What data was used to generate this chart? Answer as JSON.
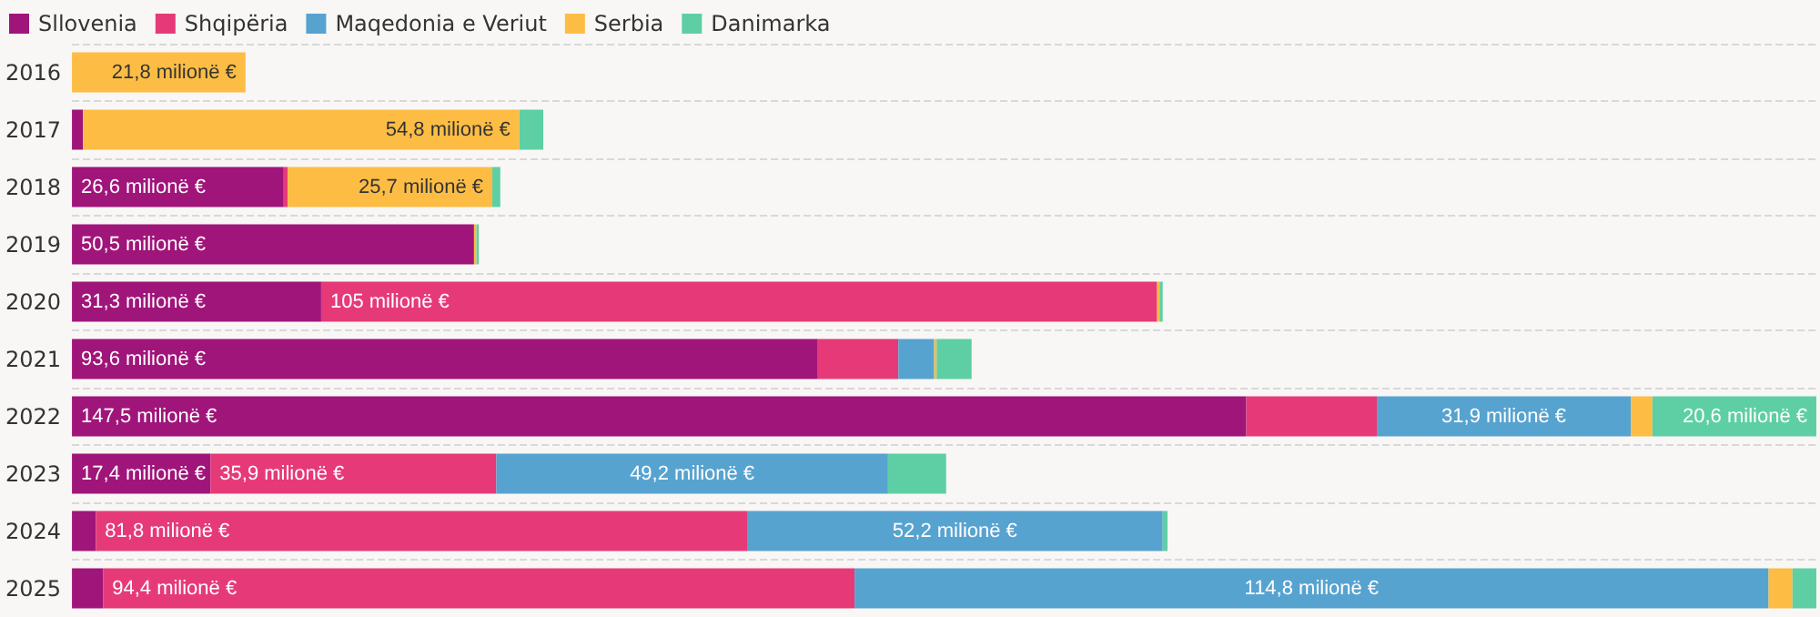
{
  "chart_data": {
    "type": "bar",
    "orientation": "horizontal",
    "stacked": true,
    "grid": "y",
    "legend": "top left",
    "categories": [
      "2016",
      "2017",
      "2018",
      "2019",
      "2020",
      "2021",
      "2022",
      "2023",
      "2024",
      "2025"
    ],
    "series": [
      {
        "name": "Sllovenia",
        "color": "#a0157a",
        "values": [
          null,
          1.4,
          26.6,
          50.5,
          31.3,
          93.6,
          147.5,
          17.4,
          3.0,
          3.9
        ],
        "value_labels": [
          null,
          null,
          "26,6 milionë €",
          "50,5 milionë €",
          "31,3 milionë €",
          "93,6 milionë €",
          "147,5 milionë €",
          "17,4 milionë €",
          null,
          null
        ]
      },
      {
        "name": "Shqipëria",
        "color": "#e63a78",
        "values": [
          null,
          null,
          0.5,
          null,
          105,
          10.2,
          16.4,
          35.9,
          81.8,
          94.4
        ],
        "value_labels": [
          null,
          null,
          null,
          null,
          "105 milionë €",
          null,
          null,
          "35,9 milionë €",
          "81,8 milionë €",
          "94,4 milionë €"
        ]
      },
      {
        "name": "Maqedonia e Veriut",
        "color": "#57a3d0",
        "values": [
          null,
          null,
          null,
          null,
          null,
          4.5,
          31.9,
          49.2,
          52.2,
          114.8
        ],
        "value_labels": [
          null,
          null,
          null,
          null,
          null,
          null,
          "31,9 milionë €",
          "49,2 milionë €",
          "52,2 milionë €",
          "114,8 milionë €"
        ]
      },
      {
        "name": "Serbia",
        "color": "#fdbd44",
        "values": [
          21.8,
          54.8,
          25.7,
          0.3,
          0.3,
          0.3,
          2.7,
          null,
          null,
          3.0
        ],
        "value_labels": [
          "21,8 milionë €",
          "54,8 milionë €",
          "25,7 milionë €",
          null,
          null,
          null,
          null,
          null,
          null,
          null
        ]
      },
      {
        "name": "Danimarka",
        "color": "#5ecfa4",
        "values": [
          null,
          3.0,
          1.0,
          0.3,
          0.4,
          4.4,
          20.6,
          7.3,
          0.6,
          3.0
        ],
        "value_labels": [
          null,
          null,
          null,
          null,
          null,
          null,
          "20,6 milionë €",
          null,
          null,
          null
        ]
      }
    ]
  }
}
